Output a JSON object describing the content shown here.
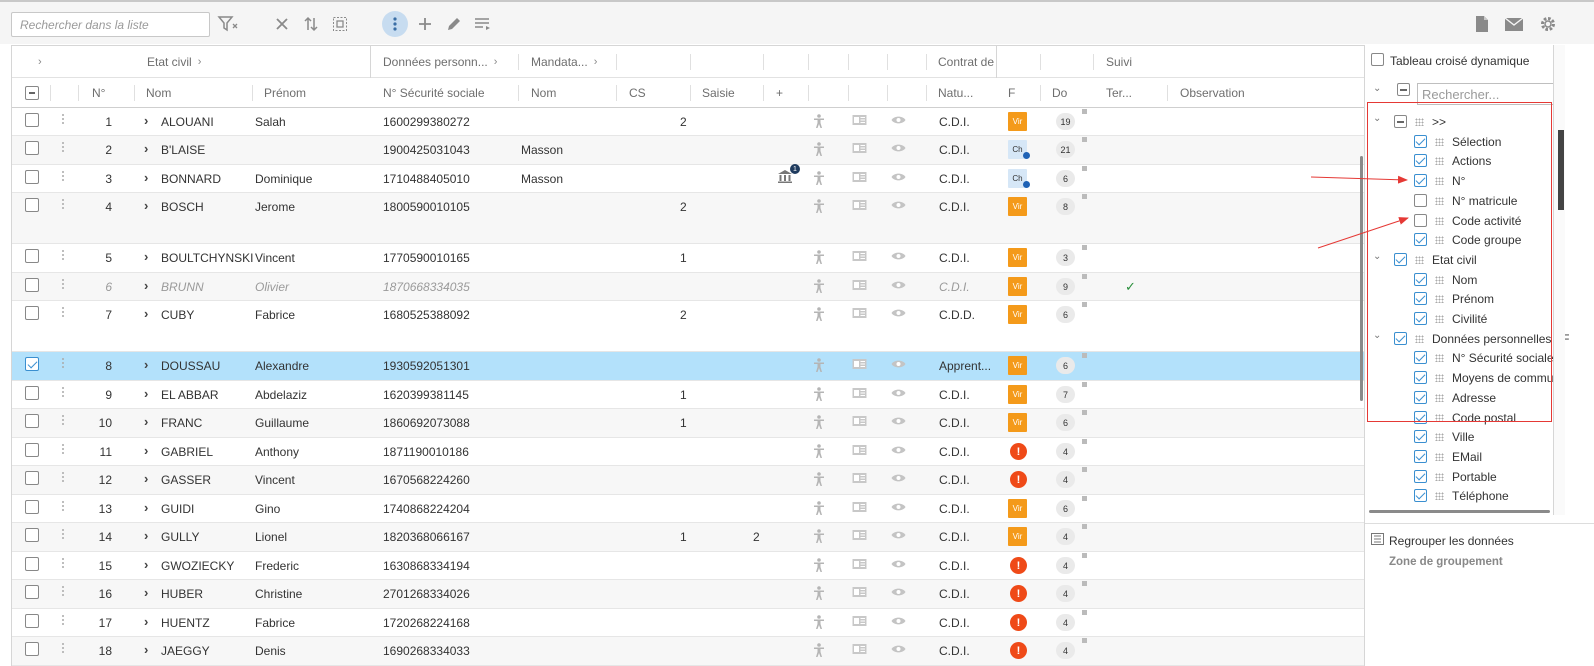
{
  "toolbar": {
    "search_placeholder": "Rechercher dans la liste"
  },
  "columns_group": {
    "etat_civil": "Etat civil",
    "donnees_personnelles": "Données personn...",
    "mandataire": "Mandata...",
    "contrat": "Contrat de",
    "suivi": "Suivi"
  },
  "columns": {
    "num": "N°",
    "nom": "Nom",
    "prenom": "Prénom",
    "secu": "N° Sécurité sociale",
    "mandataire_nom": "Nom",
    "cs": "CS",
    "saisie": "Saisie",
    "plus": "+",
    "nature": "Natu...",
    "f": "F",
    "do": "Do",
    "ter": "Ter...",
    "observation": "Observation"
  },
  "rows": [
    {
      "n": "1",
      "nom": "ALOUANI",
      "prenom": "Salah",
      "secu": "1600299380272",
      "mand": "",
      "cs": "2",
      "saisie": "",
      "nature": "C.D.I.",
      "f": "Vir",
      "do": "19"
    },
    {
      "n": "2",
      "nom": "B'LAISE",
      "prenom": "",
      "secu": "1900425031043",
      "mand": "Masson",
      "cs": "",
      "saisie": "",
      "nature": "C.D.I.",
      "f": "Ch",
      "do": "21"
    },
    {
      "n": "3",
      "nom": "BONNARD",
      "prenom": "Dominique",
      "secu": "1710488405010",
      "mand": "Masson",
      "cs": "",
      "saisie": "",
      "nature": "C.D.I.",
      "f": "Ch",
      "do": "6",
      "bank": "1"
    },
    {
      "n": "4",
      "nom": "BOSCH",
      "prenom": "Jerome",
      "secu": "1800590010105",
      "mand": "",
      "cs": "2",
      "saisie": "",
      "nature": "C.D.I.",
      "f": "Vir",
      "do": "8"
    },
    {
      "n": "5",
      "nom": "BOULTCHYNSKI",
      "prenom": "Vincent",
      "secu": "1770590010165",
      "mand": "",
      "cs": "1",
      "saisie": "",
      "nature": "C.D.I.",
      "f": "Vir",
      "do": "3"
    },
    {
      "n": "6",
      "nom": "BRUNN",
      "prenom": "Olivier",
      "secu": "1870668334035",
      "mand": "",
      "cs": "",
      "saisie": "",
      "nature": "C.D.I.",
      "f": "Vir",
      "do": "9",
      "ter": "✓"
    },
    {
      "n": "7",
      "nom": "CUBY",
      "prenom": "Fabrice",
      "secu": "1680525388092",
      "mand": "",
      "cs": "2",
      "saisie": "",
      "nature": "C.D.D.",
      "f": "Vir",
      "do": "6"
    },
    {
      "n": "8",
      "nom": "DOUSSAU",
      "prenom": "Alexandre",
      "secu": "1930592051301",
      "mand": "",
      "cs": "",
      "saisie": "",
      "nature": "Apprent...",
      "f": "Vir",
      "do": "6"
    },
    {
      "n": "9",
      "nom": "EL ABBAR",
      "prenom": "Abdelaziz",
      "secu": "1620399381145",
      "mand": "",
      "cs": "1",
      "saisie": "",
      "nature": "C.D.I.",
      "f": "Vir",
      "do": "7"
    },
    {
      "n": "10",
      "nom": "FRANC",
      "prenom": "Guillaume",
      "secu": "1860692073088",
      "mand": "",
      "cs": "1",
      "saisie": "",
      "nature": "C.D.I.",
      "f": "Vir",
      "do": "6"
    },
    {
      "n": "11",
      "nom": "GABRIEL",
      "prenom": "Anthony",
      "secu": "1871190010186",
      "mand": "",
      "cs": "",
      "saisie": "",
      "nature": "C.D.I.",
      "f": "!",
      "do": "4"
    },
    {
      "n": "12",
      "nom": "GASSER",
      "prenom": "Vincent",
      "secu": "1670568224260",
      "mand": "",
      "cs": "",
      "saisie": "",
      "nature": "C.D.I.",
      "f": "!",
      "do": "4"
    },
    {
      "n": "13",
      "nom": "GUIDI",
      "prenom": "Gino",
      "secu": "1740868224204",
      "mand": "",
      "cs": "",
      "saisie": "",
      "nature": "C.D.I.",
      "f": "Vir",
      "do": "6"
    },
    {
      "n": "14",
      "nom": "GULLY",
      "prenom": "Lionel",
      "secu": "1820368066167",
      "mand": "",
      "cs": "1",
      "saisie": "2",
      "nature": "C.D.I.",
      "f": "Vir",
      "do": "4"
    },
    {
      "n": "15",
      "nom": "GWOZIECKY",
      "prenom": "Frederic",
      "secu": "1630868334194",
      "mand": "",
      "cs": "",
      "saisie": "",
      "nature": "C.D.I.",
      "f": "!",
      "do": "4"
    },
    {
      "n": "16",
      "nom": "HUBER",
      "prenom": "Christine",
      "secu": "2701268334026",
      "mand": "",
      "cs": "",
      "saisie": "",
      "nature": "C.D.I.",
      "f": "!",
      "do": "4"
    },
    {
      "n": "17",
      "nom": "HUENTZ",
      "prenom": "Fabrice",
      "secu": "1720268224168",
      "mand": "",
      "cs": "",
      "saisie": "",
      "nature": "C.D.I.",
      "f": "!",
      "do": "4"
    },
    {
      "n": "18",
      "nom": "JAEGGY",
      "prenom": "Denis",
      "secu": "1690268334033",
      "mand": "",
      "cs": "",
      "saisie": "",
      "nature": "C.D.I.",
      "f": "!",
      "do": "4"
    }
  ],
  "panel": {
    "pivot_label": "Tableau croisé dynamique",
    "search_placeholder": "Rechercher...",
    "tree": [
      {
        "label": ">>",
        "level": 0,
        "state": "ind",
        "chev": true
      },
      {
        "label": "Sélection",
        "level": 1,
        "state": "on"
      },
      {
        "label": "Actions",
        "level": 1,
        "state": "on"
      },
      {
        "label": "N°",
        "level": 1,
        "state": "on"
      },
      {
        "label": "N° matricule",
        "level": 1,
        "state": "off"
      },
      {
        "label": "Code activité",
        "level": 1,
        "state": "off"
      },
      {
        "label": "Code groupe",
        "level": 1,
        "state": "on"
      },
      {
        "label": "Etat civil",
        "level": 0,
        "state": "on",
        "chev": true
      },
      {
        "label": "Nom",
        "level": 1,
        "state": "on"
      },
      {
        "label": "Prénom",
        "level": 1,
        "state": "on"
      },
      {
        "label": "Civilité",
        "level": 1,
        "state": "on"
      },
      {
        "label": "Données personnelles - F",
        "level": 0,
        "state": "on",
        "chev": true
      },
      {
        "label": "N° Sécurité sociale",
        "level": 1,
        "state": "on"
      },
      {
        "label": "Moyens de communi",
        "level": 1,
        "state": "on"
      },
      {
        "label": "Adresse",
        "level": 1,
        "state": "on"
      },
      {
        "label": "Code postal",
        "level": 1,
        "state": "on"
      },
      {
        "label": "Ville",
        "level": 1,
        "state": "on"
      },
      {
        "label": "EMail",
        "level": 1,
        "state": "on"
      },
      {
        "label": "Portable",
        "level": 1,
        "state": "on"
      },
      {
        "label": "Téléphone",
        "level": 1,
        "state": "on"
      }
    ],
    "group_label": "Regrouper les données",
    "group_zone": "Zone de groupement"
  },
  "colors": {
    "selected_row": "#b3e1fb",
    "vir_badge": "#f49a1a",
    "alert": "#ef4a18",
    "annotation_red": "#e53935"
  }
}
